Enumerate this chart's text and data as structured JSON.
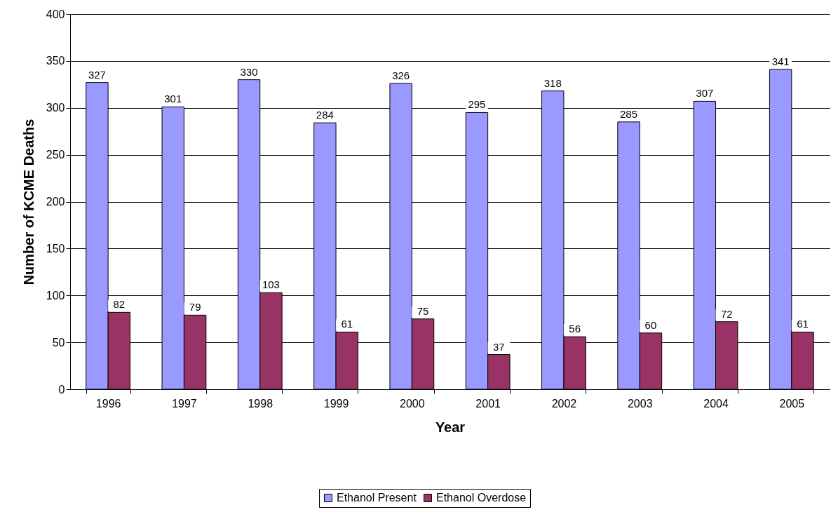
{
  "chart_data": {
    "type": "bar",
    "xlabel": "Year",
    "ylabel": "Number of KCME Deaths",
    "categories": [
      "1996",
      "1997",
      "1998",
      "1999",
      "2000",
      "2001",
      "2002",
      "2003",
      "2004",
      "2005"
    ],
    "series": [
      {
        "name": "Ethanol Present",
        "color": "#9999ff",
        "values": [
          327,
          301,
          330,
          284,
          326,
          295,
          318,
          285,
          307,
          341
        ]
      },
      {
        "name": "Ethanol Overdose",
        "color": "#993366",
        "values": [
          82,
          79,
          103,
          61,
          75,
          37,
          56,
          60,
          72,
          61
        ]
      }
    ],
    "ylim": [
      0,
      400
    ],
    "yticks": [
      0,
      50,
      100,
      150,
      200,
      250,
      300,
      350,
      400
    ],
    "grid": "y",
    "legend": "bottom",
    "data_labels": true
  }
}
